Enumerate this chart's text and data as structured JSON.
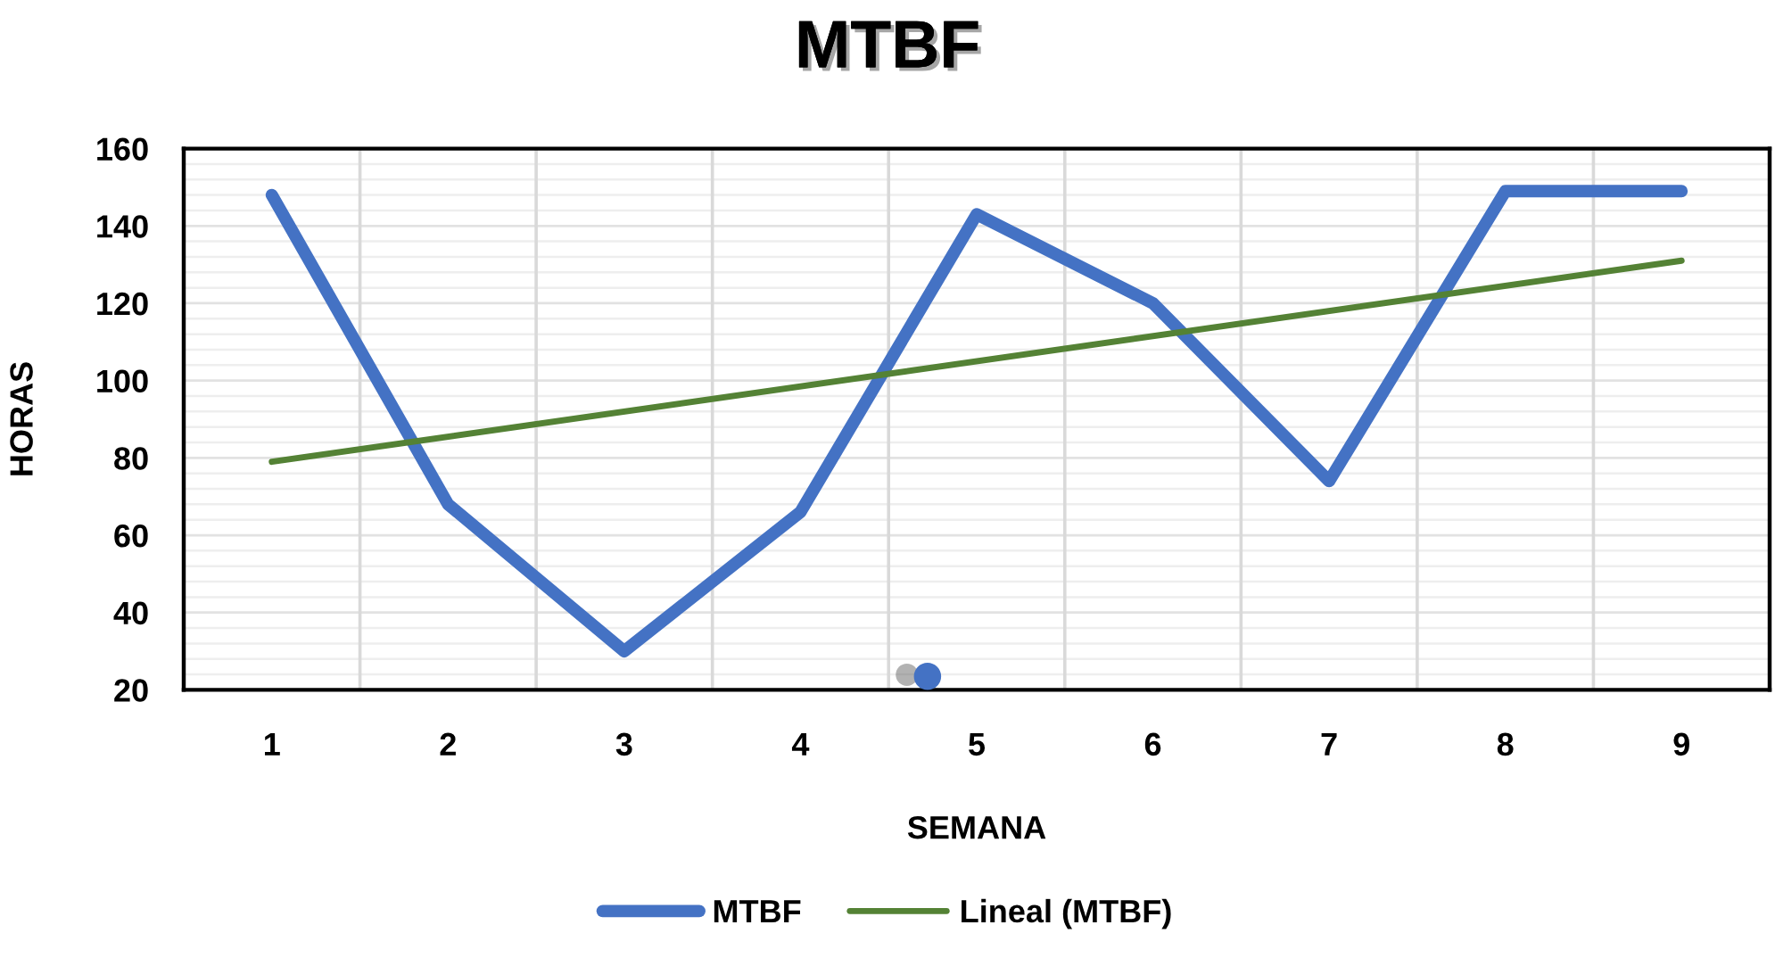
{
  "chart_data": {
    "type": "line",
    "title": "MTBF",
    "xlabel": "SEMANA",
    "ylabel": "HORAS",
    "categories": [
      "1",
      "2",
      "3",
      "4",
      "5",
      "6",
      "7",
      "8",
      "9"
    ],
    "series": [
      {
        "name": "MTBF",
        "color": "#4472c4",
        "values": [
          148,
          68,
          30,
          66,
          143,
          120,
          74,
          149,
          149
        ]
      },
      {
        "name": "Lineal (MTBF)",
        "color": "#548235",
        "x": [
          "1",
          "9"
        ],
        "values": [
          79,
          131
        ]
      }
    ],
    "ylim": [
      20,
      160
    ],
    "yticks": [
      20,
      40,
      60,
      80,
      100,
      120,
      140,
      160
    ],
    "grid": true,
    "legend": "bottom"
  }
}
